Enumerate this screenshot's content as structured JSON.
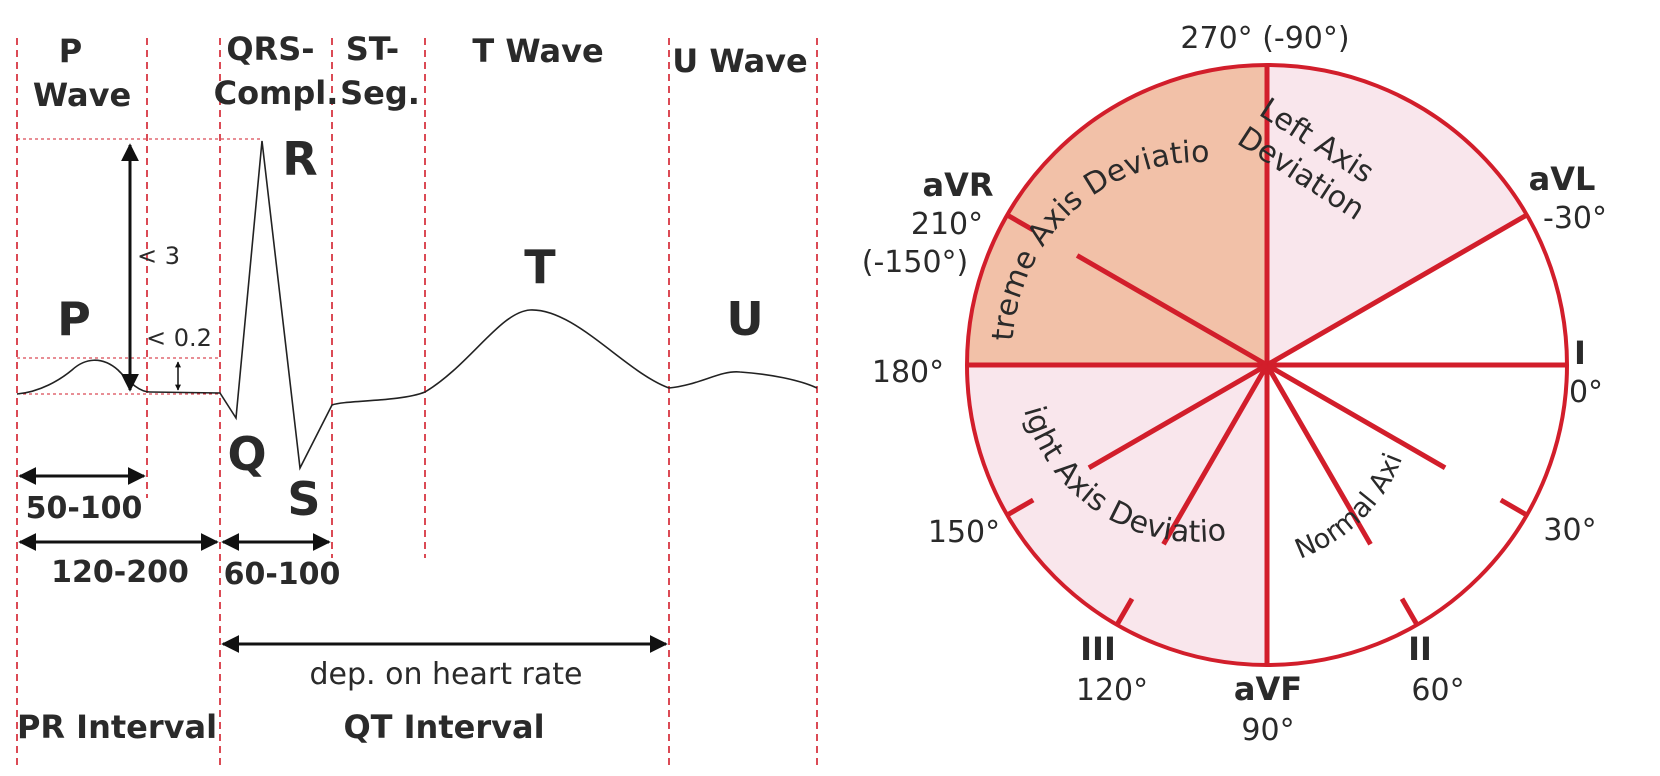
{
  "colors": {
    "accent_red": "#d21e2b",
    "extreme_fill": "#f2c1a8",
    "deviation_fill": "#f9e6ec"
  },
  "ecg": {
    "segments": {
      "p_wave": [
        "P",
        "Wave"
      ],
      "qrs": [
        "QRS-",
        "Compl."
      ],
      "st": [
        "ST-",
        "Seg."
      ],
      "t_wave": "T Wave",
      "u_wave": "U Wave"
    },
    "wave_labels": {
      "p": "P",
      "q": "Q",
      "r": "R",
      "s": "S",
      "t": "T",
      "u": "U"
    },
    "amplitudes": {
      "qrs_max": "< 3",
      "p_max": "< 0.2"
    },
    "durations": {
      "p_wave": "50-100",
      "pr_interval": "120-200",
      "qrs": "60-100",
      "qt_note": "dep. on heart rate"
    },
    "intervals": {
      "pr": "PR Interval",
      "qt": "QT Interval"
    }
  },
  "axis": {
    "angles": {
      "top": "270° (-90°)",
      "avl_deg": "-30°",
      "i_deg": "0°",
      "deg30": "30°",
      "ii_deg": "60°",
      "avf_deg": "90°",
      "iii_deg": "120°",
      "deg150": "150°",
      "deg180": "180°",
      "avr_deg": "210°",
      "avr_alt": "(-150°)"
    },
    "leads": {
      "avr": "aVR",
      "avl": "aVL",
      "i": "I",
      "ii": "II",
      "avf": "aVF",
      "iii": "III"
    },
    "zones": {
      "extreme": "Extreme Axis Deviation",
      "left": [
        "Left Axis",
        "Deviation"
      ],
      "right": "Right Axis Deviation",
      "normal": "Normal Axis"
    }
  }
}
